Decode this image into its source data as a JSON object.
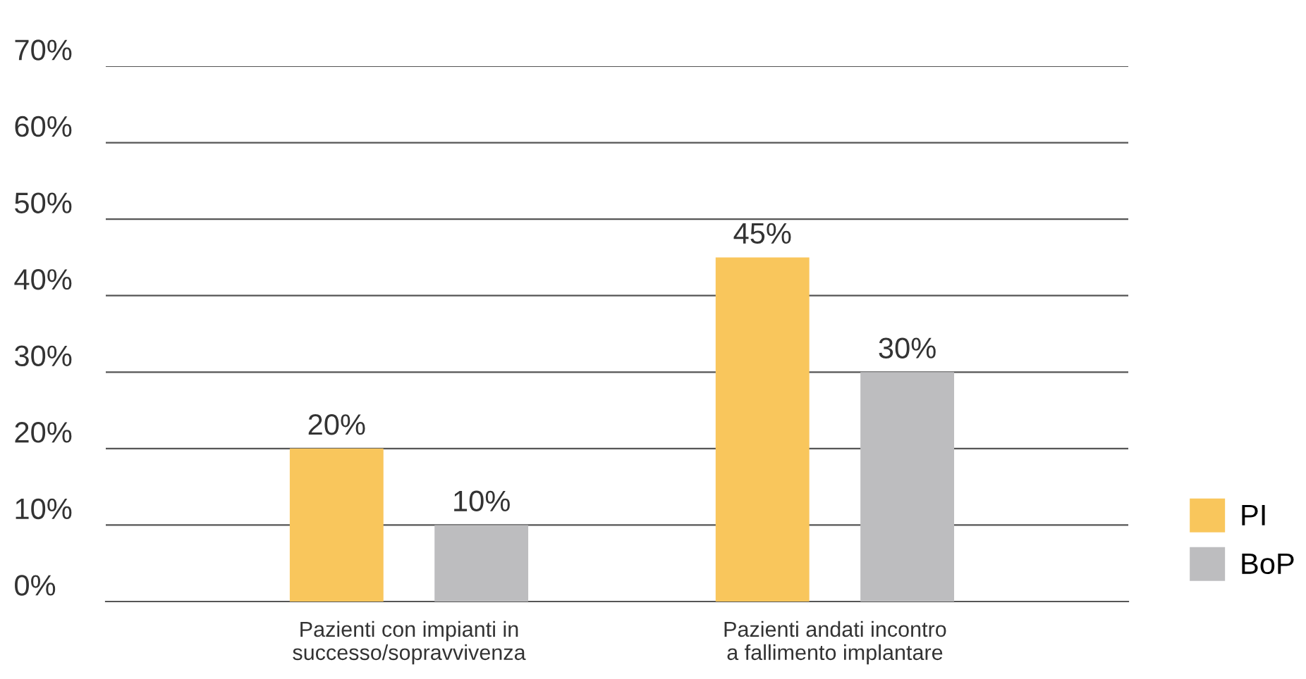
{
  "chart_data": {
    "type": "bar",
    "categories": [
      "Pazienti con impianti in\nsuccesso/sopravvivenza",
      "Pazienti andati incontro\na fallimento implantare"
    ],
    "series": [
      {
        "name": "PI",
        "color": "#f9c65c",
        "values": [
          20,
          45
        ]
      },
      {
        "name": "BoP",
        "color": "#bdbdbf",
        "values": [
          10,
          30
        ]
      }
    ],
    "ylim": [
      0,
      70
    ],
    "yticks": [
      {
        "value": 0,
        "label": "0%"
      },
      {
        "value": 10,
        "label": "10%"
      },
      {
        "value": 20,
        "label": "20%"
      },
      {
        "value": 30,
        "label": "30%"
      },
      {
        "value": 40,
        "label": "40%"
      },
      {
        "value": 50,
        "label": "50%"
      },
      {
        "value": 60,
        "label": "60%"
      },
      {
        "value": 70,
        "label": "70%"
      }
    ],
    "grid": "y",
    "legend": "bottom right",
    "value_labels": [
      [
        "20%",
        "45%"
      ],
      [
        "10%",
        "30%"
      ]
    ]
  }
}
